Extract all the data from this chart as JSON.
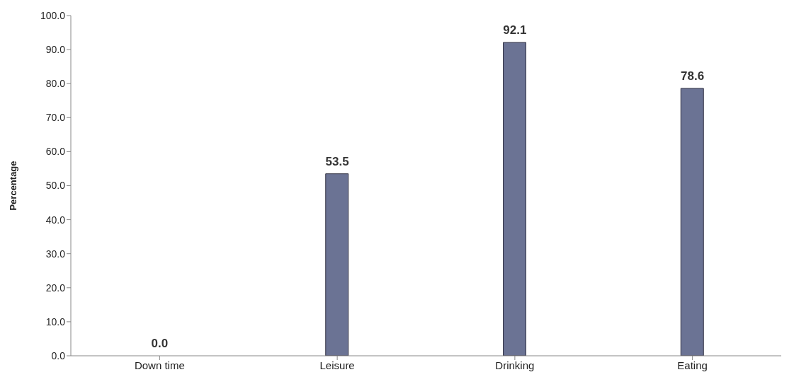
{
  "chart_data": {
    "type": "bar",
    "ylabel": "Percentage",
    "categories": [
      "Down time",
      "Leisure",
      "Drinking",
      "Eating"
    ],
    "values": [
      0,
      53.5,
      92.1,
      78.6
    ],
    "color": "#6b7394",
    "value_labels": [
      "0.0",
      "53.5",
      "92.1",
      "78.6"
    ],
    "ylim": [
      0,
      100
    ],
    "yticks": [
      {
        "value": 0,
        "label": "0.0"
      },
      {
        "value": 10,
        "label": "10.0"
      },
      {
        "value": 20,
        "label": "20.0"
      },
      {
        "value": 30,
        "label": "30.0"
      },
      {
        "value": 40,
        "label": "40.0"
      },
      {
        "value": 50,
        "label": "50.0"
      },
      {
        "value": 60,
        "label": "60.0"
      },
      {
        "value": 70,
        "label": "70.0"
      },
      {
        "value": 80,
        "label": "80.0"
      },
      {
        "value": 90,
        "label": "90.0"
      },
      {
        "value": 100,
        "label": "100.0"
      }
    ],
    "grid": false,
    "legend": false
  }
}
